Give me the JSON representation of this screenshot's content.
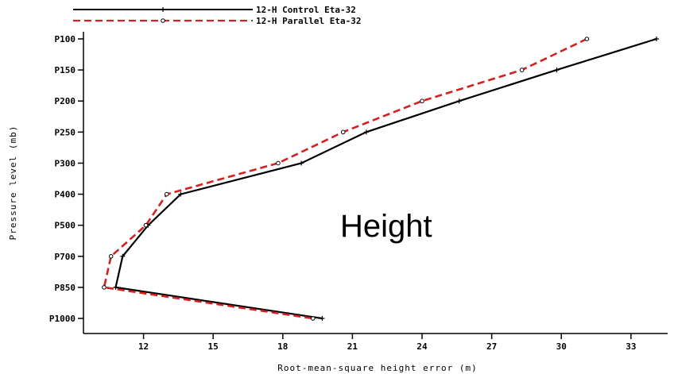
{
  "chart_data": {
    "type": "line",
    "orientation": "horizontal-profile",
    "xlabel": "Root-mean-square height error (m)",
    "ylabel": "Pressure level (mb)",
    "annotation": "Height",
    "xlim": [
      9.5,
      34.5
    ],
    "x_ticks": [
      12,
      15,
      18,
      21,
      24,
      27,
      30,
      33
    ],
    "categories": [
      "P100",
      "P150",
      "P200",
      "P250",
      "P300",
      "P400",
      "P500",
      "P700",
      "P850",
      "P1000"
    ],
    "legend_position": "top-left",
    "grid": false,
    "series": [
      {
        "name": "12-H Control Eta-32",
        "color": "#000000",
        "dash": "solid",
        "marker": "plus",
        "values": [
          34.1,
          29.8,
          25.6,
          21.6,
          18.8,
          13.6,
          12.2,
          11.1,
          10.8,
          19.7
        ]
      },
      {
        "name": "12-H Parallel Eta-32",
        "color": "#d42020",
        "dash": "dashed",
        "marker": "circle",
        "values": [
          31.1,
          28.3,
          24.0,
          20.6,
          17.8,
          13.0,
          12.1,
          10.6,
          10.3,
          19.3
        ]
      }
    ]
  }
}
